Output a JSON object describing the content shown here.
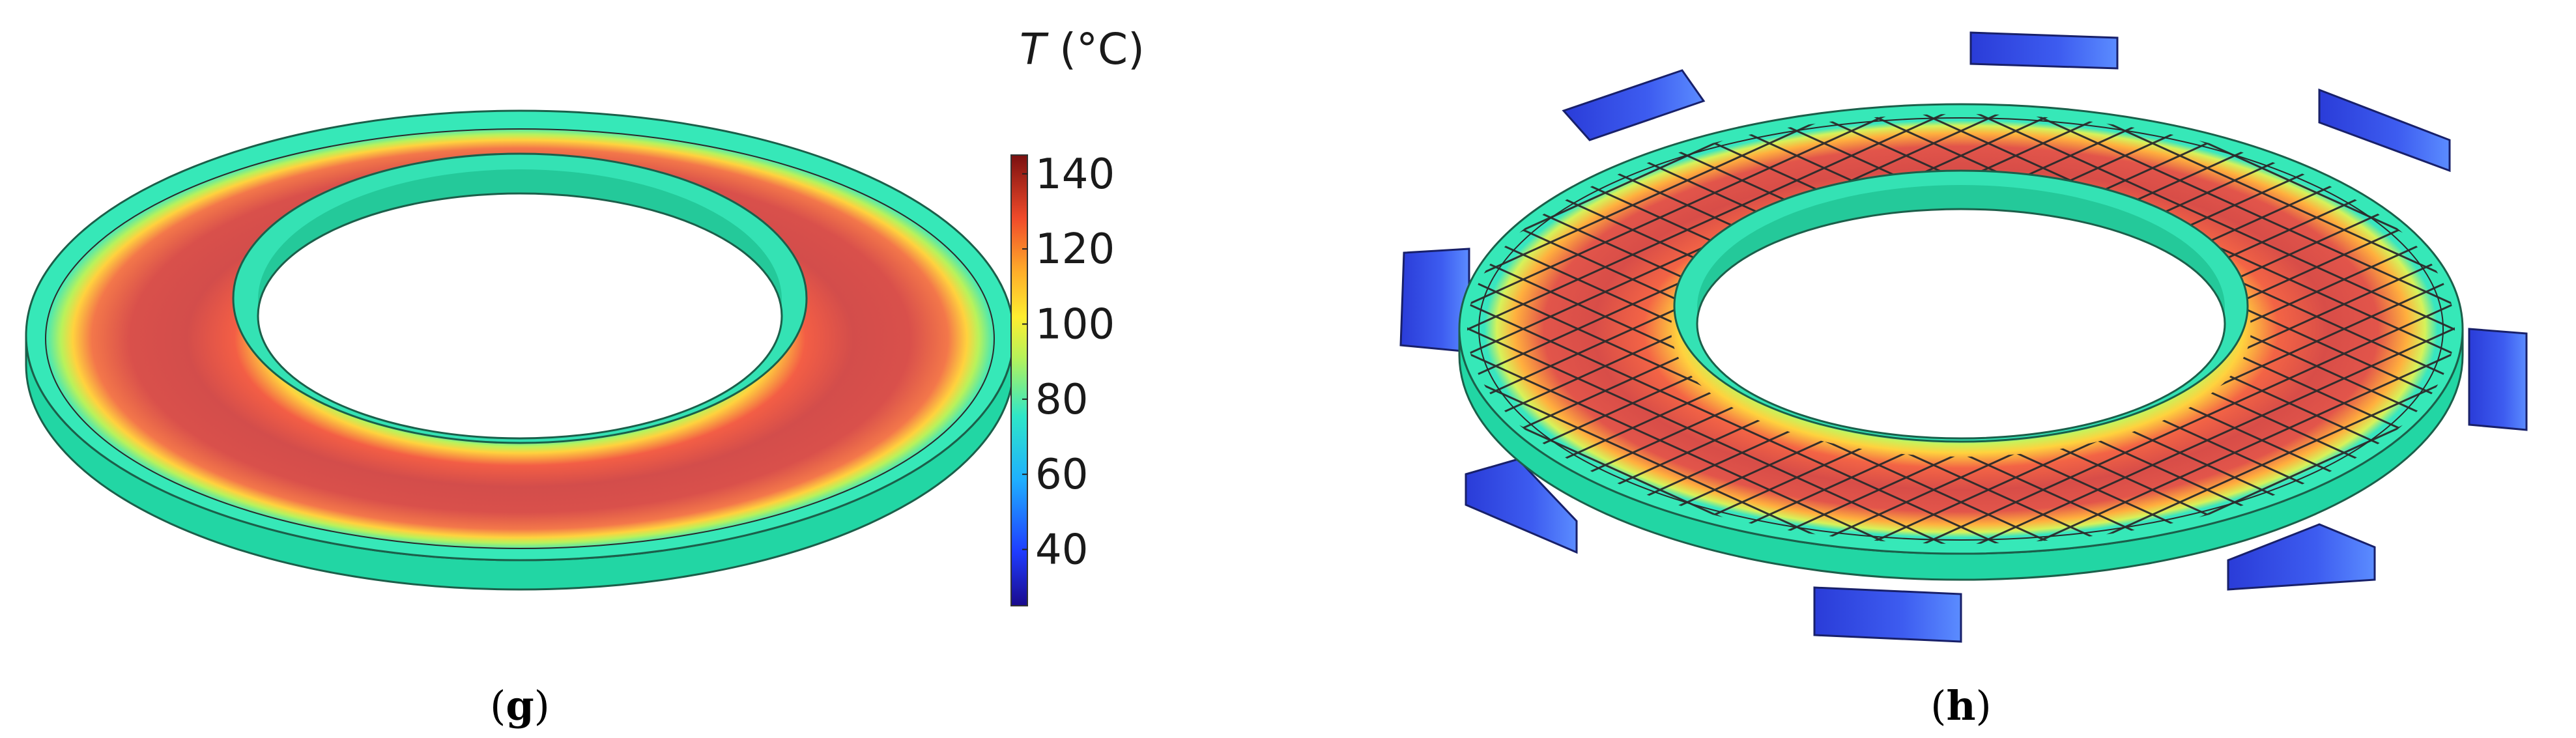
{
  "colorbar": {
    "title_var": "T",
    "title_unit": " (°C)",
    "ticks": [
      "140",
      "120",
      "100",
      "80",
      "60",
      "40"
    ],
    "tick_values": [
      140,
      120,
      100,
      80,
      60,
      40
    ],
    "range": [
      25,
      145
    ]
  },
  "panels": [
    {
      "label_open": "(",
      "label_letter": "g",
      "label_close": ")"
    },
    {
      "label_open": "(",
      "label_letter": "h",
      "label_close": ")"
    }
  ],
  "colors": {
    "hot": "#d64545",
    "mid": "#ffc247",
    "rim": "#2fe6b0",
    "cold": "#3340d8"
  }
}
